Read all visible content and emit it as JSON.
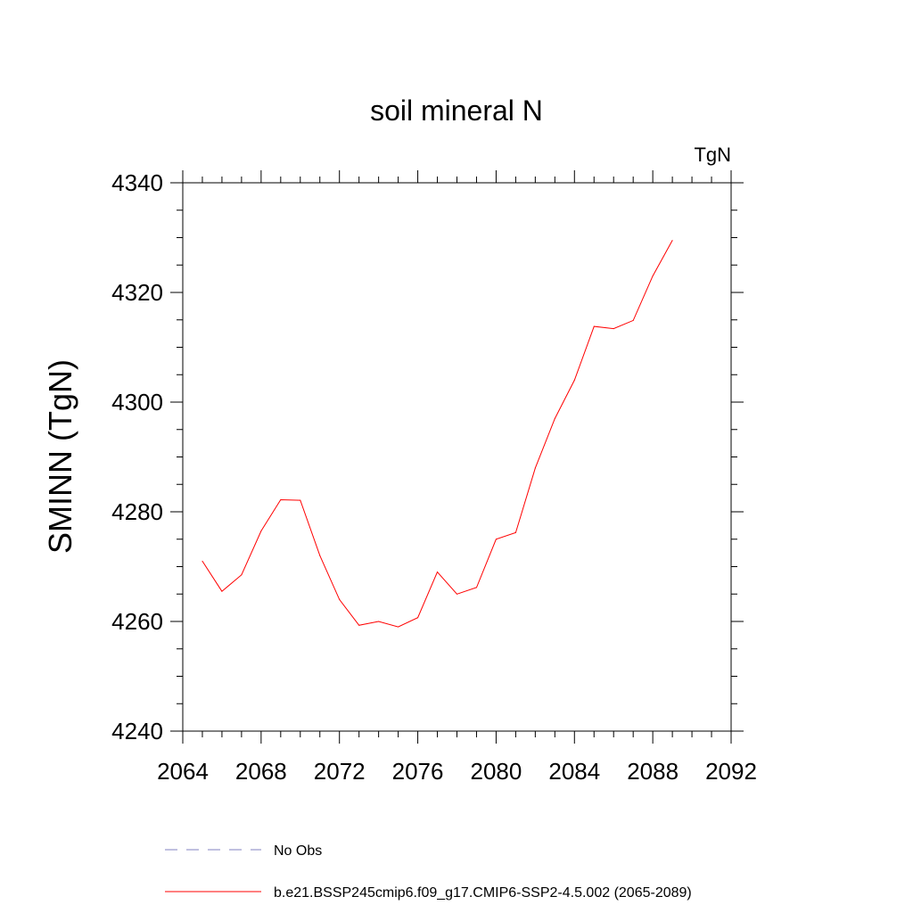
{
  "chart_data": {
    "type": "line",
    "title": "soil mineral N",
    "units": "TgN",
    "ylabel": "SMINN  (TgN)",
    "xlabel": "",
    "xlim": [
      2064,
      2092
    ],
    "ylim": [
      4240,
      4340
    ],
    "x_ticks": [
      2064,
      2068,
      2072,
      2076,
      2080,
      2084,
      2088,
      2092
    ],
    "y_ticks": [
      4240,
      4260,
      4280,
      4300,
      4320,
      4340
    ],
    "x_tick_labels": [
      "2064",
      "2068",
      "2072",
      "2076",
      "2080",
      "2084",
      "2088",
      "2092"
    ],
    "y_tick_labels": [
      "4240",
      "4260",
      "4280",
      "4300",
      "4320",
      "4340"
    ],
    "grid": false,
    "legend_position": "bottom",
    "series": [
      {
        "name": "No Obs",
        "color": "#8080c0",
        "style": "dashed",
        "x": [],
        "values": []
      },
      {
        "name": "b.e21.BSSP245cmip6.f09_g17.CMIP6-SSP2-4.5.002 (2065-2089)",
        "color": "#ff0000",
        "style": "solid",
        "x": [
          2065,
          2066,
          2067,
          2068,
          2069,
          2070,
          2071,
          2072,
          2073,
          2074,
          2075,
          2076,
          2077,
          2078,
          2079,
          2080,
          2081,
          2082,
          2083,
          2084,
          2085,
          2086,
          2087,
          2088,
          2089
        ],
        "values": [
          4271.0,
          4265.5,
          4268.5,
          4276.5,
          4282.2,
          4282.1,
          4272.0,
          4264.0,
          4259.3,
          4260.0,
          4259.0,
          4260.7,
          4269.0,
          4265.0,
          4266.2,
          4275.0,
          4276.2,
          4288.0,
          4297.0,
          4304.0,
          4313.8,
          4313.4,
          4314.9,
          4323.0,
          4329.5
        ]
      }
    ]
  }
}
